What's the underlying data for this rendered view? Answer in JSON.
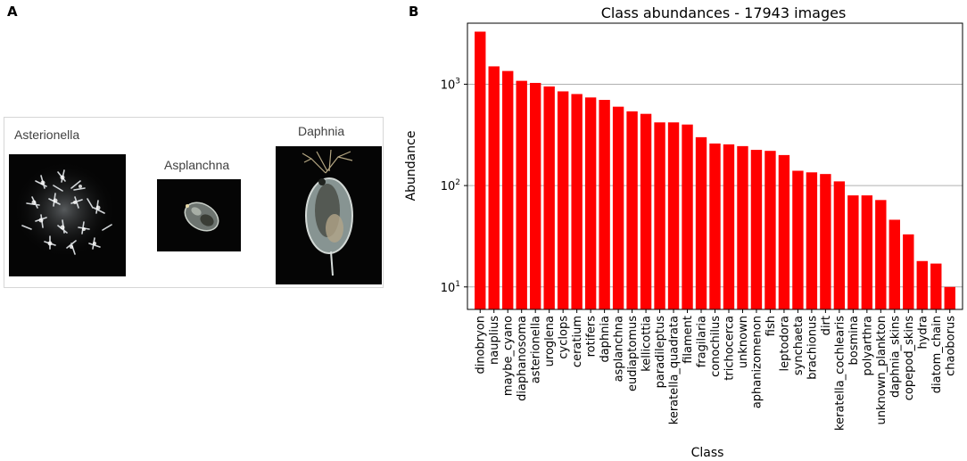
{
  "panel_a": {
    "letter": "A",
    "specimens": [
      {
        "label": "Asterionella"
      },
      {
        "label": "Asplanchna"
      },
      {
        "label": "Daphnia"
      }
    ]
  },
  "panel_b": {
    "letter": "B"
  },
  "chart_data": {
    "type": "bar",
    "scale": "log",
    "title": "Class abundances - 17943 images",
    "xlabel": "Class",
    "ylabel": "Abundance",
    "bar_color": "#ff0000",
    "grid": true,
    "ylim": [
      6,
      4000
    ],
    "yticks": [
      {
        "value": 10,
        "base": "10",
        "exp": "1"
      },
      {
        "value": 100,
        "base": "10",
        "exp": "2"
      },
      {
        "value": 1000,
        "base": "10",
        "exp": "3"
      }
    ],
    "categories": [
      "dinobryon",
      "nauplius",
      "maybe_cyano",
      "diaphanosoma",
      "asterionella",
      "uroglena",
      "cyclops",
      "ceratium",
      "rotifers",
      "daphnia",
      "asplanchna",
      "eudiaptomus",
      "kellicottia",
      "paradileptus",
      "keratella_quadrata",
      "filament",
      "fragilaria",
      "conochilus",
      "trichocerca",
      "unknown",
      "aphanizomenon",
      "fish",
      "leptodora",
      "synchaeta",
      "brachionus",
      "dirt",
      "keratella_cochlearis",
      "bosmina",
      "polyarthra",
      "unknown_plankton",
      "daphnia_skins",
      "copepod_skins",
      "hydra",
      "diatom_chain",
      "chaoborus"
    ],
    "values": [
      3300,
      1500,
      1350,
      1080,
      1030,
      950,
      850,
      800,
      740,
      700,
      600,
      540,
      510,
      420,
      420,
      400,
      300,
      260,
      255,
      245,
      225,
      220,
      200,
      140,
      135,
      130,
      110,
      80,
      80,
      72,
      46,
      33,
      18,
      17,
      10
    ]
  }
}
